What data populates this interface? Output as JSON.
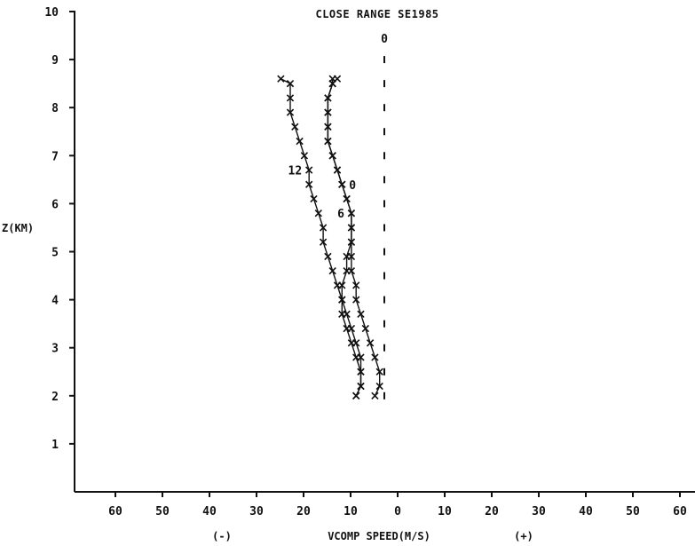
{
  "chart_data": {
    "type": "line",
    "title": "CLOSE RANGE    SE1985",
    "xlabel": "VCOMP SPEED(M/S)",
    "ylabel": "Z(KM)",
    "x_sign_labels": {
      "negative": "(-)",
      "positive": "(+)"
    },
    "xlim": [
      -65,
      65
    ],
    "ylim": [
      0,
      10
    ],
    "x_ticks": [
      -60,
      -50,
      -40,
      -30,
      -20,
      -10,
      0,
      10,
      20,
      30,
      40,
      50,
      60
    ],
    "x_tick_labels": [
      "60",
      "50",
      "40",
      "30",
      "20",
      "10",
      "0",
      "10",
      "20",
      "30",
      "40",
      "50",
      "60"
    ],
    "y_ticks": [
      1,
      2,
      3,
      4,
      5,
      6,
      7,
      8,
      9,
      10
    ],
    "y_tick_labels": [
      "1",
      "2",
      "3",
      "4",
      "5",
      "6",
      "7",
      "8",
      "9",
      "10"
    ],
    "grid": false,
    "legend": "none",
    "series": [
      {
        "label": "0",
        "offset": 0,
        "points": [
          [
            -2,
            2.0
          ],
          [
            -1,
            2.2
          ],
          [
            -1,
            2.5
          ],
          [
            -2,
            2.8
          ],
          [
            -3,
            3.1
          ],
          [
            -4,
            3.4
          ],
          [
            -5,
            3.7
          ],
          [
            -6,
            4.0
          ],
          [
            -6,
            4.3
          ],
          [
            -7,
            4.6
          ],
          [
            -7,
            4.9
          ],
          [
            -7,
            5.2
          ],
          [
            -7,
            5.5
          ],
          [
            -7,
            5.8
          ],
          [
            -8,
            6.1
          ],
          [
            -9,
            6.4
          ],
          [
            -10,
            6.7
          ],
          [
            -11,
            7.0
          ],
          [
            -12,
            7.3
          ],
          [
            -12,
            7.6
          ],
          [
            -12,
            7.9
          ],
          [
            -12,
            8.2
          ],
          [
            -11,
            8.5
          ],
          [
            -10,
            8.6
          ]
        ]
      },
      {
        "label": "6",
        "offset": -6,
        "points": [
          [
            0,
            2.0
          ],
          [
            1,
            2.2
          ],
          [
            1,
            2.5
          ],
          [
            0,
            2.8
          ],
          [
            -1,
            3.1
          ],
          [
            -2,
            3.4
          ],
          [
            -3,
            3.7
          ],
          [
            -3,
            4.0
          ],
          [
            -3,
            4.3
          ],
          [
            -2,
            4.6
          ],
          [
            -2,
            4.9
          ],
          [
            -1,
            5.2
          ],
          [
            -1,
            5.5
          ],
          [
            -1,
            5.8
          ],
          [
            -2,
            6.1
          ],
          [
            -3,
            6.4
          ],
          [
            -4,
            6.7
          ],
          [
            -5,
            7.0
          ],
          [
            -6,
            7.3
          ],
          [
            -6,
            7.6
          ],
          [
            -6,
            7.9
          ],
          [
            -6,
            8.2
          ],
          [
            -5,
            8.5
          ],
          [
            -5,
            8.6
          ]
        ]
      },
      {
        "label": "12",
        "offset": -12,
        "points": [
          [
            6,
            2.0
          ],
          [
            7,
            2.2
          ],
          [
            7,
            2.5
          ],
          [
            7,
            2.8
          ],
          [
            6,
            3.1
          ],
          [
            5,
            3.4
          ],
          [
            4,
            3.7
          ],
          [
            3,
            4.0
          ],
          [
            2,
            4.3
          ],
          [
            1,
            4.6
          ],
          [
            0,
            4.9
          ],
          [
            -1,
            5.2
          ],
          [
            -1,
            5.5
          ],
          [
            -2,
            5.8
          ],
          [
            -3,
            6.1
          ],
          [
            -4,
            6.4
          ],
          [
            -4,
            6.7
          ],
          [
            -5,
            7.0
          ],
          [
            -6,
            7.3
          ],
          [
            -7,
            7.6
          ],
          [
            -8,
            7.9
          ],
          [
            -8,
            8.2
          ],
          [
            -8,
            8.5
          ],
          [
            -10,
            8.6
          ]
        ]
      }
    ],
    "reference_line": {
      "label": "0",
      "x": 0,
      "y_values": [
        2.0,
        2.5,
        3.0,
        3.5,
        4.0,
        4.5,
        5.0,
        5.5,
        6.0,
        6.5,
        7.0,
        7.5,
        8.0,
        8.5,
        9.0
      ]
    }
  }
}
